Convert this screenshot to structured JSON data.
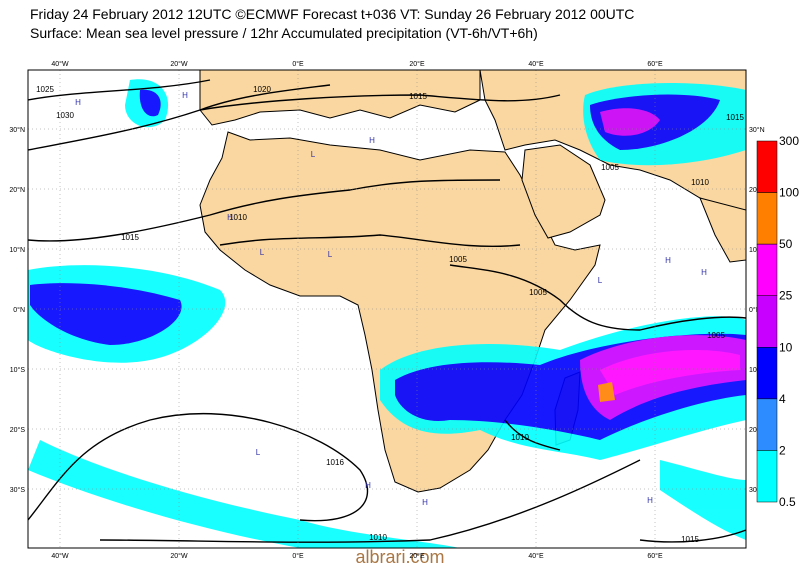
{
  "header": {
    "line1": "Friday 24 February 2012 12UTC ©ECMWF Forecast t+036 VT: Sunday 26 February 2012 00UTC",
    "line2": "Surface: Mean sea level pressure / 12hr Accumulated precipitation (VT-6h/VT+6h)"
  },
  "map": {
    "lon_labels": [
      "40°W",
      "20°W",
      "0°E",
      "20°E",
      "40°E",
      "60°E"
    ],
    "lat_labels": [
      "30°N",
      "20°N",
      "10°N",
      "0°N",
      "10°S",
      "20°S",
      "30°S"
    ],
    "isobar_labels": [
      "1025",
      "1030",
      "1020",
      "1015",
      "1015",
      "1010",
      "1005",
      "1005",
      "1005",
      "1010",
      "1010",
      "1016",
      "1010",
      "1015",
      "1005",
      "1015"
    ],
    "pressure_centers": [
      "H",
      "H",
      "L",
      "H",
      "L",
      "H",
      "L",
      "L",
      "H",
      "H",
      "L",
      "H",
      "H",
      "H"
    ]
  },
  "colorbar": {
    "labels": [
      "300",
      "100",
      "50",
      "25",
      "10",
      "4",
      "2",
      "0.5"
    ],
    "colors": [
      "#ff0000",
      "#ff8000",
      "#ff00ff",
      "#c800ff",
      "#0000ff",
      "#2d8cff",
      "#00ffff"
    ]
  },
  "watermark": "albrari.com"
}
